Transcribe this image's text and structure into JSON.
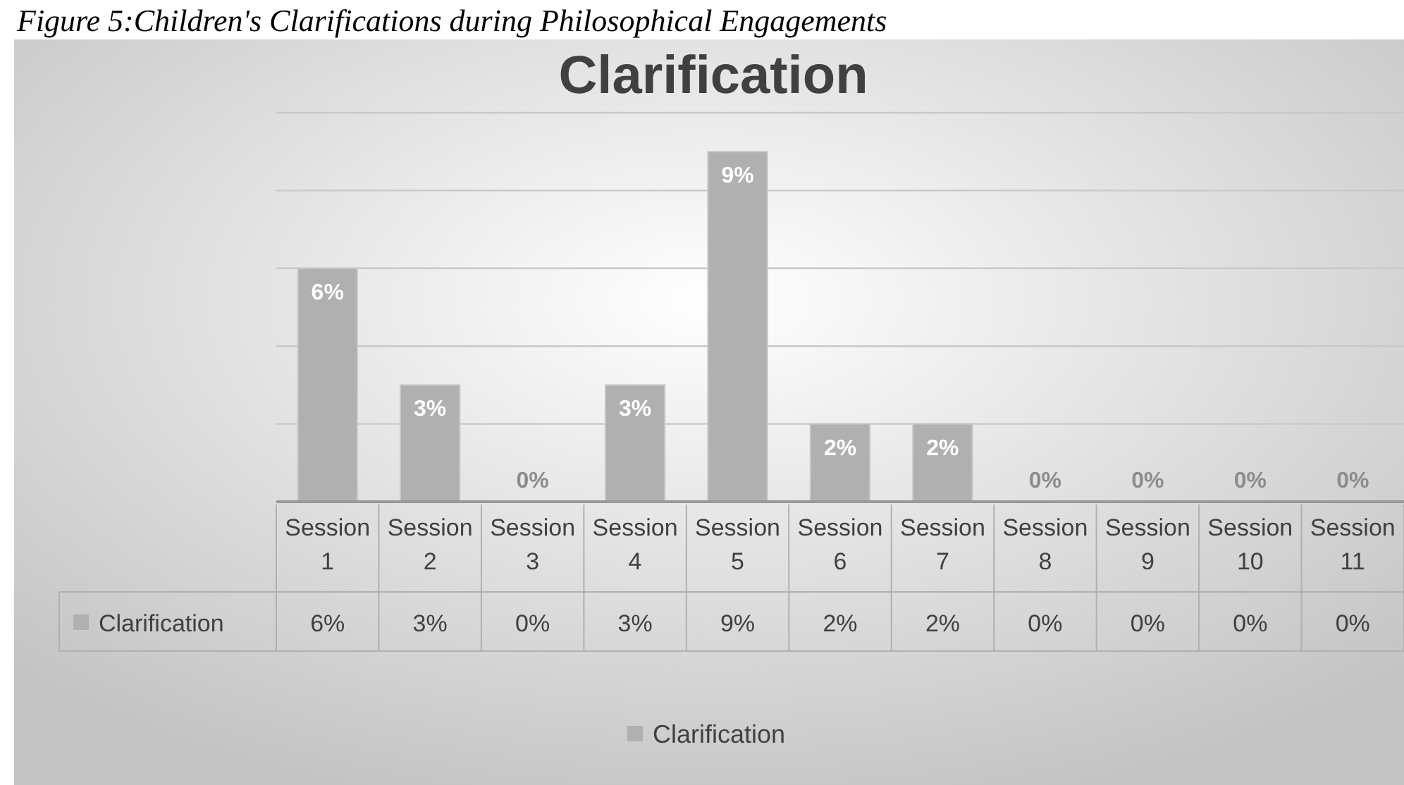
{
  "chart_data": {
    "type": "bar",
    "title": "Clarification",
    "annotations": [
      "Figure 5:Children's Clarifications during Philosophical Engagements"
    ],
    "categories": [
      "Session 1",
      "Session 2",
      "Session 3",
      "Session 4",
      "Session 5",
      "Session 6",
      "Session 7",
      "Session 8",
      "Session 9",
      "Session 10",
      "Session 11"
    ],
    "series": [
      {
        "name": "Clarification",
        "color": "#b0b0b0",
        "values": [
          6,
          3,
          0,
          3,
          9,
          2,
          2,
          0,
          0,
          0,
          0
        ],
        "value_labels": [
          "6%",
          "3%",
          "0%",
          "3%",
          "9%",
          "2%",
          "2%",
          "0%",
          "0%",
          "0%",
          "0%"
        ]
      }
    ],
    "ylim": [
      0,
      10
    ],
    "yticks": [
      {
        "value": 0,
        "label": null
      },
      {
        "value": 2,
        "label": null
      },
      {
        "value": 4,
        "label": null
      },
      {
        "value": 6,
        "label": null
      },
      {
        "value": 8,
        "label": null
      },
      {
        "value": 10,
        "label": null
      }
    ],
    "tick_labels": "x",
    "grid": "y",
    "legend": "bottom"
  }
}
